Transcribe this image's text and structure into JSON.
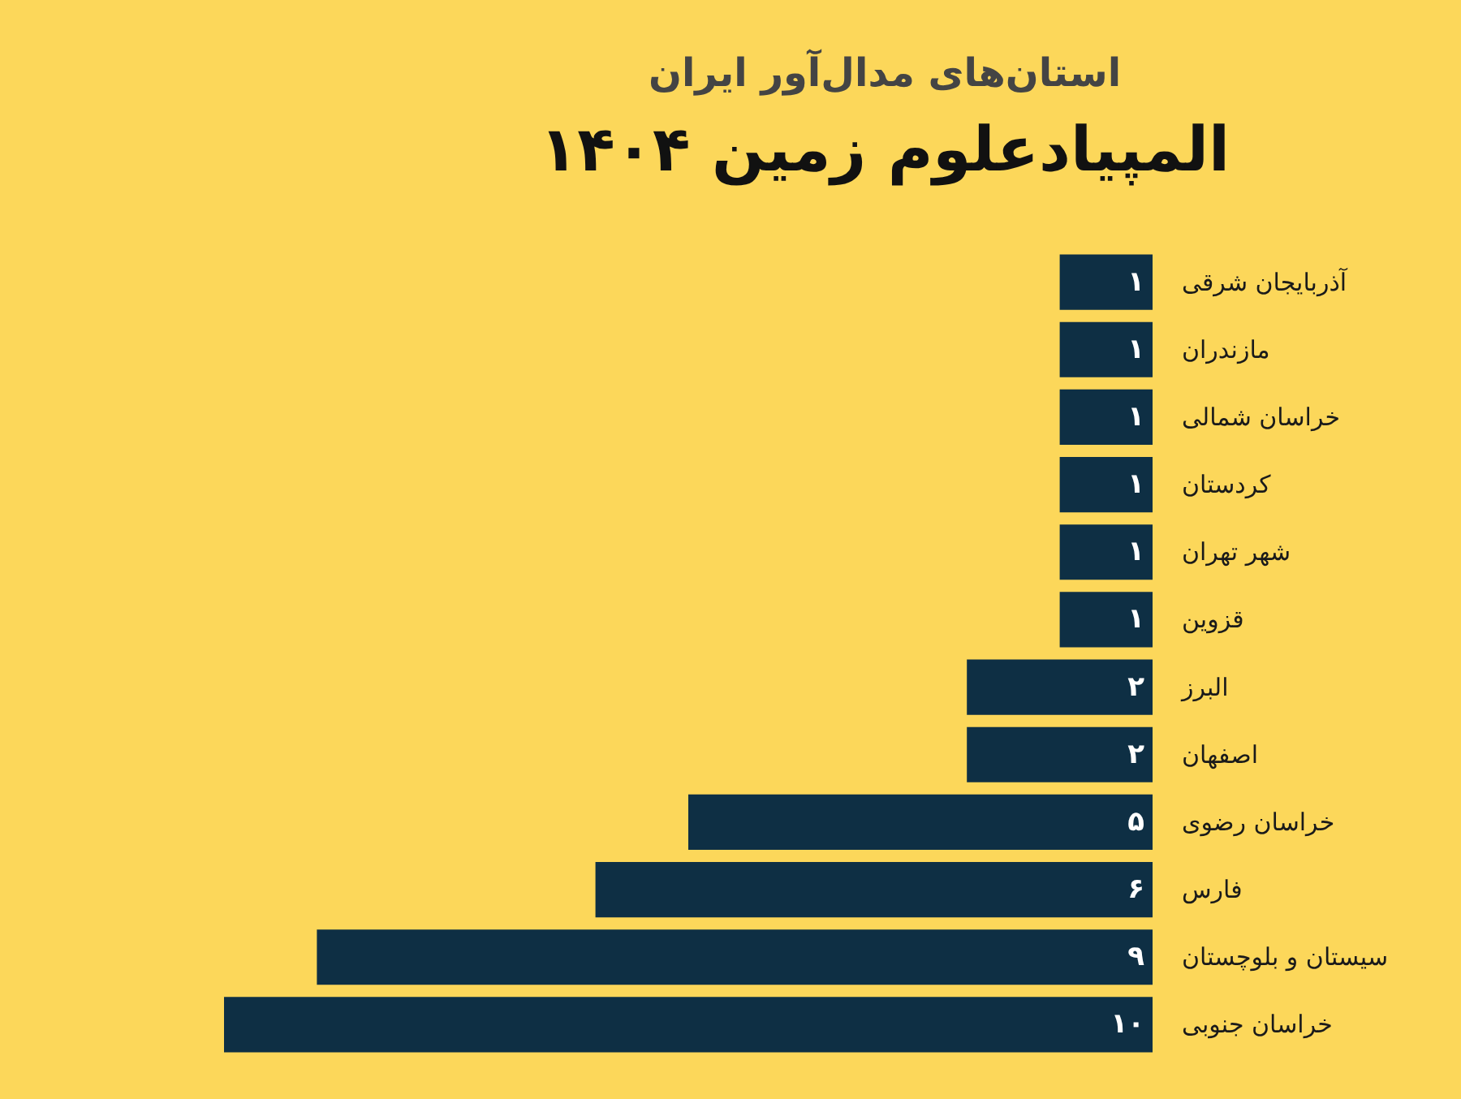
{
  "chart_data": {
    "type": "bar",
    "orientation": "horizontal",
    "title": "المپیادعلوم زمین ۱۴۰۴",
    "subtitle": "استان‌های مدال‌آور ایران",
    "categories": [
      "آذربایجان شرقی",
      "مازندران",
      "خراسان شمالی",
      "کردستان",
      "شهر تهران",
      "قزوین",
      "البرز",
      "اصفهان",
      "خراسان رضوی",
      "فارس",
      "سیستان و بلوچستان",
      "خراسان جنوبی"
    ],
    "values": [
      1,
      1,
      1,
      1,
      1,
      1,
      2,
      2,
      5,
      6,
      9,
      10
    ],
    "value_labels": [
      "۱",
      "۱",
      "۱",
      "۱",
      "۱",
      "۱",
      "۲",
      "۲",
      "۵",
      "۶",
      "۹",
      "۱۰"
    ],
    "color": "#0e2f44"
  }
}
